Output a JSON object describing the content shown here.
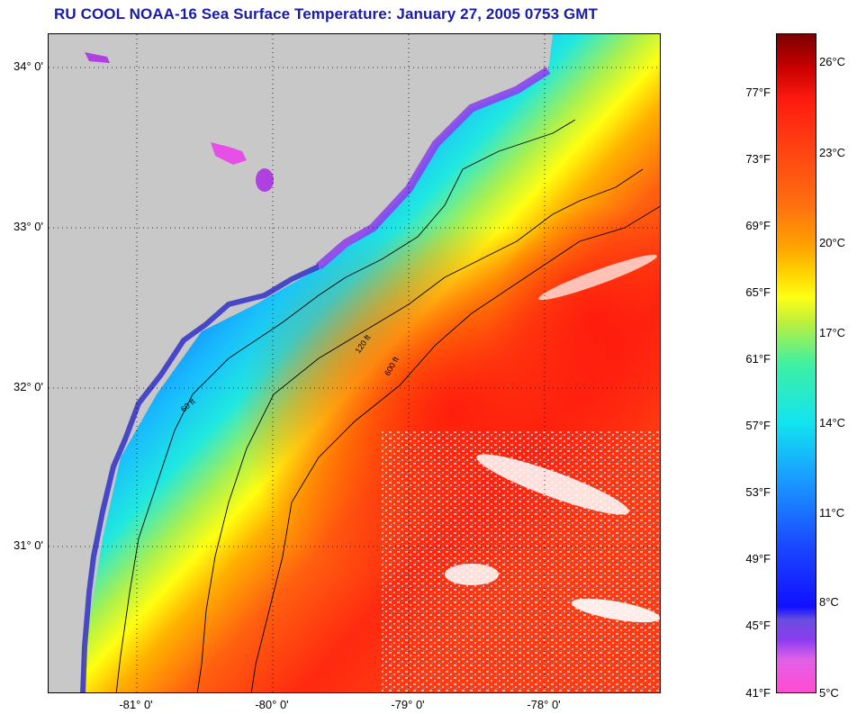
{
  "title": "RU COOL  NOAA-16  Sea Surface Temperature:  January 27, 2005 0753 GMT",
  "map": {
    "latitude_labels": [
      "34° 0'",
      "33° 0'",
      "32° 0'",
      "31° 0'"
    ],
    "longitude_labels": [
      "-81° 0'",
      "-80° 0'",
      "-79° 0'",
      "-78° 0'"
    ],
    "contour_labels": [
      "60 ft",
      "120 ft",
      "600 ft"
    ],
    "land_color": "#c8c8c8"
  },
  "colorbar": {
    "fahrenheit_labels": [
      "77°F",
      "73°F",
      "69°F",
      "65°F",
      "61°F",
      "57°F",
      "53°F",
      "49°F",
      "45°F",
      "41°F"
    ],
    "celsius_labels": [
      "26°C",
      "23°C",
      "20°C",
      "17°C",
      "14°C",
      "11°C",
      "8°C",
      "5°C"
    ]
  }
}
